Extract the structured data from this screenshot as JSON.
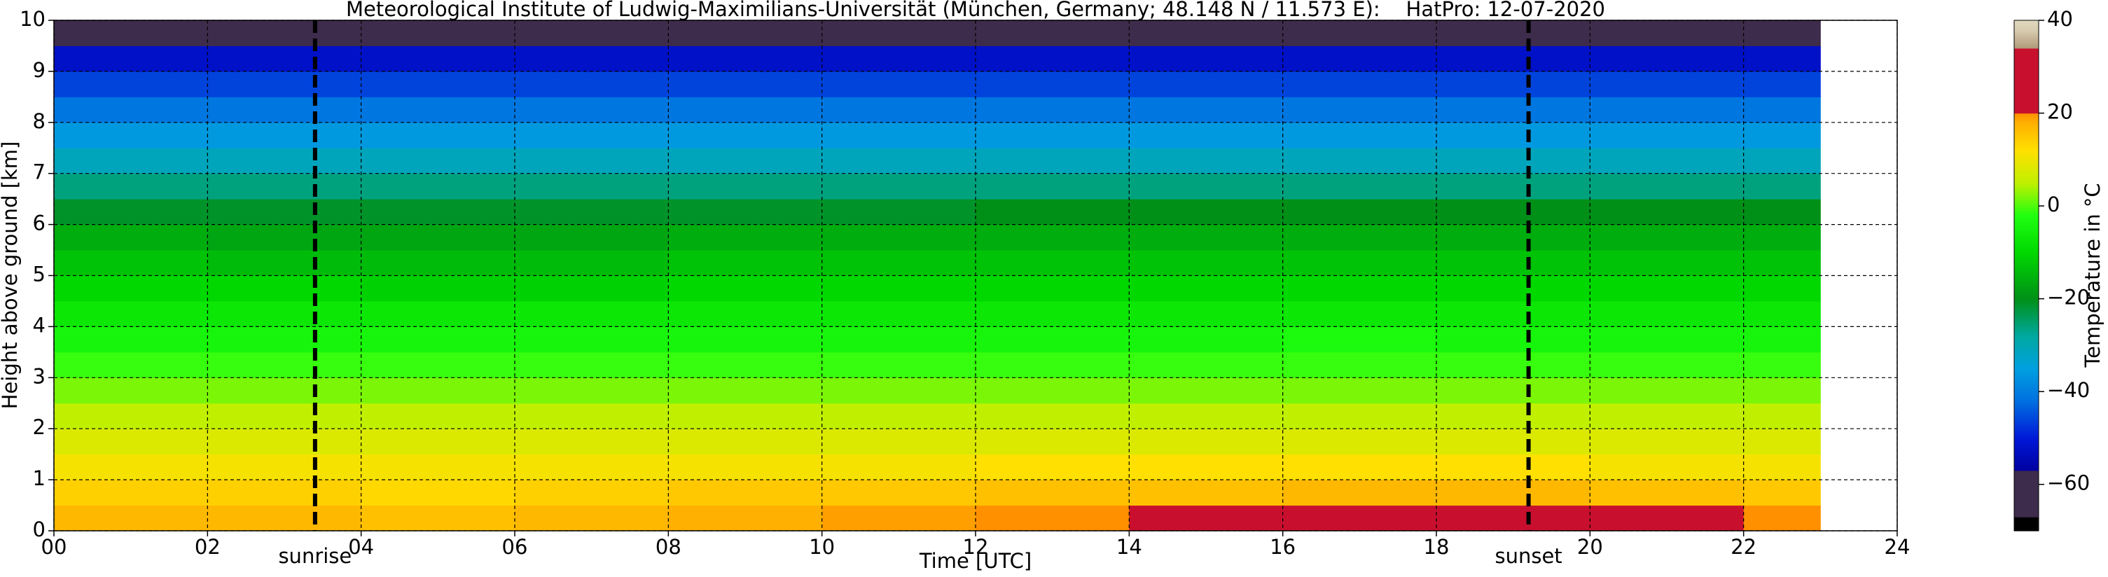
{
  "chart_data": {
    "type": "heatmap",
    "title": "Meteorological Institute of Ludwig-Maximilians-Universität (München, Germany; 48.148 N / 11.573 E):    HatPro: 12-07-2020",
    "xlabel": "Time [UTC]",
    "ylabel": "Height above ground [km]",
    "xlim": [
      0,
      24
    ],
    "ylim": [
      0,
      10
    ],
    "xticks": [
      {
        "value": 0,
        "label": "00"
      },
      {
        "value": 2,
        "label": "02"
      },
      {
        "value": 4,
        "label": "04"
      },
      {
        "value": 6,
        "label": "06"
      },
      {
        "value": 8,
        "label": "08"
      },
      10,
      12,
      14,
      16,
      18,
      20,
      22,
      24
    ],
    "yticks": [
      0,
      1,
      2,
      3,
      4,
      5,
      6,
      7,
      8,
      9,
      10
    ],
    "grid": true,
    "x_edges": [
      0,
      2,
      4,
      6,
      8,
      10,
      12,
      14,
      16,
      18,
      20,
      22,
      23
    ],
    "y_edges": [
      0,
      0.5,
      1,
      1.5,
      2,
      2.5,
      3,
      3.5,
      4,
      4.5,
      5,
      5.5,
      6,
      6.5,
      7,
      7.5,
      8,
      8.5,
      9,
      9.5,
      10
    ],
    "z": [
      [
        17,
        17,
        16,
        17,
        18,
        19,
        20,
        21,
        22,
        22,
        21,
        20
      ],
      [
        14,
        14,
        13,
        14,
        15,
        15,
        16,
        16,
        17,
        17,
        16,
        15
      ],
      [
        11,
        11,
        11,
        11,
        11,
        11,
        12,
        12,
        12,
        12,
        11,
        11
      ],
      [
        8,
        8,
        8,
        8,
        8,
        8,
        8,
        8,
        8,
        8,
        8,
        8
      ],
      [
        5,
        5,
        5,
        5,
        5,
        5,
        5,
        5,
        5,
        5,
        5,
        5
      ],
      [
        2,
        2,
        2,
        2,
        2,
        2,
        2,
        2,
        2,
        2,
        2,
        2
      ],
      [
        -1,
        -1,
        -1,
        -1,
        -1,
        -1,
        -1,
        -1,
        -1,
        -1,
        -1,
        -1
      ],
      [
        -4,
        -4,
        -4,
        -4,
        -4,
        -4,
        -4,
        -4,
        -3,
        -4,
        -4,
        -4
      ],
      [
        -7,
        -7,
        -7,
        -7,
        -7,
        -7,
        -7,
        -7,
        -7,
        -7,
        -7,
        -7
      ],
      [
        -10,
        -10,
        -11,
        -11,
        -10,
        -10,
        -10,
        -10,
        -10,
        -10,
        -10,
        -10
      ],
      [
        -13,
        -14,
        -14,
        -14,
        -13,
        -13,
        -13,
        -13,
        -13,
        -13,
        -13,
        -13
      ],
      [
        -16,
        -17,
        -17,
        -17,
        -16,
        -16,
        -16,
        -16,
        -16,
        -16,
        -16,
        -16
      ],
      [
        -21,
        -21,
        -21,
        -21,
        -21,
        -21,
        -20,
        -20,
        -20,
        -20,
        -20,
        -20
      ],
      [
        -26,
        -26,
        -26,
        -26,
        -26,
        -26,
        -26,
        -26,
        -26,
        -26,
        -26,
        -26
      ],
      [
        -31,
        -31,
        -31,
        -31,
        -31,
        -31,
        -31,
        -31,
        -31,
        -31,
        -31,
        -31
      ],
      [
        -36,
        -36,
        -36,
        -36,
        -36,
        -36,
        -36,
        -36,
        -36,
        -36,
        -36,
        -36
      ],
      [
        -41,
        -41,
        -41,
        -41,
        -41,
        -41,
        -41,
        -41,
        -41,
        -41,
        -41,
        -41
      ],
      [
        -46,
        -46,
        -46,
        -46,
        -46,
        -46,
        -46,
        -46,
        -46,
        -46,
        -46,
        -46
      ],
      [
        -52,
        -52,
        -52,
        -52,
        -52,
        -52,
        -52,
        -52,
        -52,
        -52,
        -52,
        -52
      ],
      [
        -57,
        -57,
        -57,
        -57,
        -57,
        -57,
        -57,
        -57,
        -57,
        -57,
        -57,
        -57
      ]
    ],
    "annotations": [
      {
        "text": "sunrise",
        "x": 3.4
      },
      {
        "text": "sunset",
        "x": 19.2
      }
    ],
    "colorbar": {
      "label": "Temperature in °C",
      "clim": [
        -70,
        40
      ],
      "ticks": [
        {
          "value": -60,
          "label": "−60"
        },
        {
          "value": -40,
          "label": "−40"
        },
        {
          "value": -20,
          "label": "−20"
        },
        0,
        20,
        40
      ],
      "colormap": [
        [
          -70,
          "#000000"
        ],
        [
          -67,
          "#000000"
        ],
        [
          -67,
          "#3e2c4c"
        ],
        [
          -57,
          "#3e2c4c"
        ],
        [
          -57,
          "#0000a0"
        ],
        [
          -50,
          "#0018d8"
        ],
        [
          -42,
          "#0070e0"
        ],
        [
          -35,
          "#00a0e0"
        ],
        [
          -28,
          "#00a8a0"
        ],
        [
          -20,
          "#009018"
        ],
        [
          -10,
          "#00d800"
        ],
        [
          -2,
          "#20ff10"
        ],
        [
          5,
          "#c0f000"
        ],
        [
          12,
          "#ffe000"
        ],
        [
          18,
          "#ffb000"
        ],
        [
          20,
          "#ff9000"
        ],
        [
          20,
          "#c8102e"
        ],
        [
          34,
          "#c8102e"
        ],
        [
          34,
          "#b09a78"
        ],
        [
          38,
          "#d8ccb0"
        ],
        [
          40,
          "#e0d8c0"
        ]
      ]
    }
  }
}
